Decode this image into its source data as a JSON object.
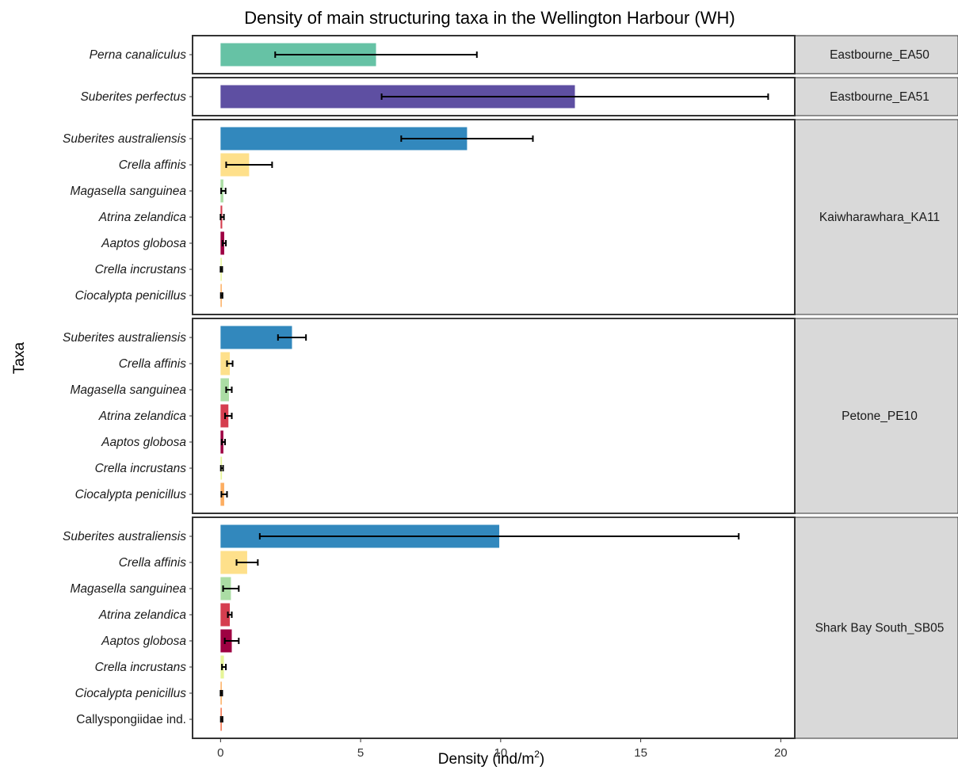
{
  "chart_data": {
    "type": "bar",
    "orientation": "horizontal",
    "title": "Density of main structuring taxa in the Wellington Harbour (WH)",
    "xlabel": "Density (ind/m",
    "xlabel_sup": "2",
    "xlabel_suffix": ")",
    "ylabel": "Taxa",
    "xlim": [
      -1,
      20.5
    ],
    "xticks": [
      0,
      5,
      10,
      15,
      20
    ],
    "grid": false,
    "legend": "none",
    "colors": {
      "Perna canaliculus": "#66c2a5",
      "Suberites perfectus": "#5e4fa2",
      "Suberites australiensis": "#3288bd",
      "Crella affinis": "#fee08b",
      "Magasella sanguinea": "#abdda4",
      "Atrina zelandica": "#d53e4f",
      "Aaptos globosa": "#9e0142",
      "Crella incrustans": "#e6f598",
      "Ciocalypta penicillus": "#fdae61",
      "Callyspongiidae ind.": "#f46d43"
    },
    "panels": [
      {
        "site": "Eastbourne_EA50",
        "taxa": [
          {
            "name": "Perna canaliculus",
            "italic": true,
            "value": 5.55,
            "error": 3.6
          }
        ]
      },
      {
        "site": "Eastbourne_EA51",
        "taxa": [
          {
            "name": "Suberites perfectus",
            "italic": true,
            "value": 12.65,
            "error": 6.9
          }
        ]
      },
      {
        "site": "Kaiwharawhara_KA11",
        "taxa": [
          {
            "name": "Suberites australiensis",
            "italic": true,
            "value": 8.8,
            "error": 2.35
          },
          {
            "name": "Crella affinis",
            "italic": true,
            "value": 1.02,
            "error": 0.82
          },
          {
            "name": "Magasella sanguinea",
            "italic": true,
            "value": 0.1,
            "error": 0.08
          },
          {
            "name": "Atrina zelandica",
            "italic": true,
            "value": 0.06,
            "error": 0.06
          },
          {
            "name": "Aaptos globosa",
            "italic": true,
            "value": 0.13,
            "error": 0.06
          },
          {
            "name": "Crella incrustans",
            "italic": true,
            "value": 0.03,
            "error": 0.03
          },
          {
            "name": "Ciocalypta penicillus",
            "italic": true,
            "value": 0.04,
            "error": 0.03
          }
        ]
      },
      {
        "site": "Petone_PE10",
        "taxa": [
          {
            "name": "Suberites australiensis",
            "italic": true,
            "value": 2.55,
            "error": 0.5
          },
          {
            "name": "Crella affinis",
            "italic": true,
            "value": 0.33,
            "error": 0.1
          },
          {
            "name": "Magasella sanguinea",
            "italic": true,
            "value": 0.3,
            "error": 0.1
          },
          {
            "name": "Atrina zelandica",
            "italic": true,
            "value": 0.28,
            "error": 0.12
          },
          {
            "name": "Aaptos globosa",
            "italic": true,
            "value": 0.1,
            "error": 0.06
          },
          {
            "name": "Crella incrustans",
            "italic": true,
            "value": 0.05,
            "error": 0.04
          },
          {
            "name": "Ciocalypta penicillus",
            "italic": true,
            "value": 0.13,
            "error": 0.1
          }
        ]
      },
      {
        "site": "Shark Bay South_SB05",
        "taxa": [
          {
            "name": "Suberites australiensis",
            "italic": true,
            "value": 9.95,
            "error": 8.55
          },
          {
            "name": "Crella affinis",
            "italic": true,
            "value": 0.95,
            "error": 0.38
          },
          {
            "name": "Magasella sanguinea",
            "italic": true,
            "value": 0.37,
            "error": 0.28
          },
          {
            "name": "Atrina zelandica",
            "italic": true,
            "value": 0.33,
            "error": 0.07
          },
          {
            "name": "Aaptos globosa",
            "italic": true,
            "value": 0.4,
            "error": 0.25
          },
          {
            "name": "Crella incrustans",
            "italic": true,
            "value": 0.12,
            "error": 0.07
          },
          {
            "name": "Ciocalypta penicillus",
            "italic": true,
            "value": 0.03,
            "error": 0.03
          },
          {
            "name": "Callyspongiidae ind.",
            "italic": false,
            "value": 0.04,
            "error": 0.03
          }
        ]
      }
    ]
  }
}
